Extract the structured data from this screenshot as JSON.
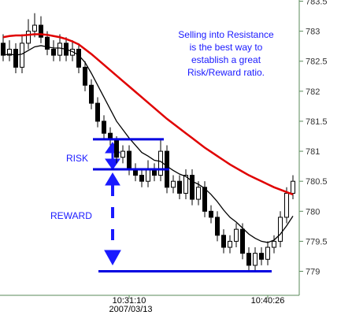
{
  "chart_data": {
    "type": "candlestick",
    "annotation": [
      "Selling into Resistance",
      "is the best way to",
      "establish a great",
      "Risk/Reward ratio."
    ],
    "risk_label": "RISK",
    "reward_label": "REWARD",
    "date_label": "2007/03/13",
    "categories": [
      null,
      null,
      null,
      null,
      null,
      null,
      null,
      null,
      null,
      null,
      null,
      null,
      null,
      null,
      null,
      null,
      null,
      null,
      null,
      null,
      "10:31:10",
      null,
      null,
      null,
      null,
      null,
      null,
      null,
      null,
      null,
      null,
      null,
      null,
      null,
      null,
      null,
      null,
      null,
      null,
      null,
      null,
      null,
      "10:40:26",
      null,
      null,
      null,
      null
    ],
    "open": [
      782.8,
      782.6,
      782.7,
      782.4,
      782.8,
      783.0,
      783.1,
      782.9,
      782.7,
      782.6,
      782.8,
      782.6,
      782.7,
      782.4,
      782.1,
      781.8,
      781.5,
      781.3,
      781.2,
      780.9,
      781.0,
      780.7,
      780.6,
      780.5,
      780.7,
      780.6,
      781.0,
      780.4,
      780.5,
      780.3,
      780.6,
      780.2,
      780.4,
      780.0,
      779.9,
      779.6,
      779.4,
      779.5,
      779.7,
      779.3,
      779.1,
      779.3,
      779.2,
      779.4,
      779.5,
      779.9,
      780.3
    ],
    "high": [
      782.95,
      782.85,
      782.8,
      782.95,
      783.2,
      783.3,
      783.25,
      783.0,
      782.85,
      782.95,
      782.9,
      782.85,
      782.8,
      782.5,
      782.2,
      781.9,
      781.6,
      781.4,
      781.25,
      781.1,
      781.1,
      780.8,
      780.7,
      780.85,
      780.8,
      781.2,
      781.1,
      780.6,
      780.6,
      780.7,
      780.7,
      780.5,
      780.5,
      780.1,
      780.0,
      779.7,
      779.6,
      779.8,
      779.8,
      779.4,
      779.4,
      779.4,
      779.5,
      779.6,
      780.0,
      780.4,
      780.6
    ],
    "low": [
      782.5,
      782.5,
      782.3,
      782.3,
      782.7,
      782.9,
      782.8,
      782.6,
      782.5,
      782.5,
      782.5,
      782.5,
      782.3,
      782.0,
      781.7,
      781.4,
      781.2,
      781.1,
      780.8,
      780.8,
      780.6,
      780.5,
      780.4,
      780.4,
      780.5,
      780.5,
      780.3,
      780.3,
      780.2,
      780.2,
      780.1,
      780.1,
      779.9,
      779.8,
      779.5,
      779.3,
      779.3,
      779.4,
      779.2,
      779.0,
      779.0,
      779.1,
      779.1,
      779.3,
      779.4,
      779.8,
      780.2
    ],
    "close": [
      782.6,
      782.7,
      782.4,
      782.8,
      783.0,
      783.1,
      782.9,
      782.7,
      782.6,
      782.8,
      782.6,
      782.7,
      782.4,
      782.1,
      781.8,
      781.5,
      781.3,
      781.2,
      780.9,
      781.0,
      780.7,
      780.6,
      780.5,
      780.7,
      780.6,
      781.0,
      780.4,
      780.5,
      780.3,
      780.6,
      780.2,
      780.4,
      780.0,
      779.9,
      779.6,
      779.4,
      779.5,
      779.7,
      779.3,
      779.1,
      779.3,
      779.2,
      779.4,
      779.5,
      779.9,
      780.3,
      780.5
    ],
    "series": [
      {
        "color": "#e00000",
        "values": [
          782.9,
          782.92,
          782.93,
          782.93,
          782.94,
          782.95,
          782.95,
          782.94,
          782.92,
          782.9,
          782.87,
          782.83,
          782.78,
          782.7,
          782.62,
          782.53,
          782.44,
          782.35,
          782.26,
          782.17,
          782.08,
          781.99,
          781.9,
          781.81,
          781.72,
          781.63,
          781.54,
          781.46,
          781.38,
          781.3,
          781.22,
          781.14,
          781.06,
          780.99,
          780.92,
          780.85,
          780.78,
          780.72,
          780.66,
          780.6,
          780.55,
          780.5,
          780.45,
          780.4,
          780.36,
          780.32,
          780.28
        ]
      },
      {
        "color": "#000000",
        "values": [
          782.6,
          782.62,
          782.6,
          782.62,
          782.68,
          782.74,
          782.76,
          782.74,
          782.72,
          782.72,
          782.7,
          782.66,
          782.6,
          782.48,
          782.3,
          782.1,
          781.9,
          781.7,
          781.5,
          781.36,
          781.22,
          781.1,
          780.98,
          780.92,
          780.85,
          780.83,
          780.75,
          780.68,
          780.62,
          780.58,
          780.5,
          780.45,
          780.38,
          780.28,
          780.16,
          780.02,
          779.9,
          779.82,
          779.72,
          779.62,
          779.55,
          779.5,
          779.48,
          779.52,
          779.62,
          779.76,
          779.92
        ]
      }
    ],
    "levels": [
      781.2,
      780.7,
      779.0
    ],
    "level_color": "#0000e0",
    "ylim": [
      778.6,
      783.52
    ],
    "yticks": [
      779,
      779.5,
      780,
      780.5,
      781,
      781.5,
      782,
      782.5,
      783,
      783.5
    ]
  }
}
